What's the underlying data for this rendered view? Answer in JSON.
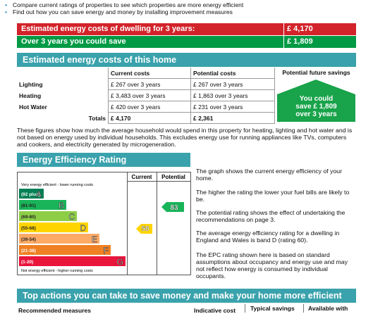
{
  "intro": [
    "Compare current ratings of properties to see which properties are more energy efficient",
    "Find out how you can save energy and money by installing improvement measures"
  ],
  "summary": [
    {
      "label": "Estimated energy costs of dwelling for 3 years:",
      "value": "£ 4,170"
    },
    {
      "label": "Over 3 years you could save",
      "value": "£ 1,809"
    }
  ],
  "costs": {
    "title": "Estimated energy costs of this home",
    "columns": [
      "Current costs",
      "Potential costs",
      "Potential future savings"
    ],
    "rows": [
      [
        "Lighting",
        "£ 267 over 3 years",
        "£ 267 over 3 years"
      ],
      [
        "Heating",
        "£ 3,483 over 3 years",
        "£ 1,863 over 3 years"
      ],
      [
        "Hot Water",
        "£ 420 over 3 years",
        "£ 231 over 3 years"
      ]
    ],
    "totals": [
      "Totals",
      "£ 4,170",
      "£ 2,361"
    ],
    "savings": [
      "You could",
      "save £ 1,809",
      "over 3 years"
    ],
    "note": "These figures show how much the average household would spend in this property for heating, lighting and hot water and is not based on energy used by individual households. This excludes energy use for running appliances like TVs, computers and cookers, and electricity generated by microgeneration."
  },
  "rating": {
    "title": "Energy Efficiency Rating",
    "columns": [
      "Current",
      "Potential"
    ],
    "top_label": "Very energy efficient - lower running costs",
    "bottom_label": "Not energy efficient - higher running costs",
    "bands": [
      {
        "range": "(92 plus)",
        "letter": "A",
        "color": "#008054"
      },
      {
        "range": "(81-91)",
        "letter": "B",
        "color": "#19b459"
      },
      {
        "range": "(69-80)",
        "letter": "C",
        "color": "#8dce46"
      },
      {
        "range": "(55-68)",
        "letter": "D",
        "color": "#ffd500"
      },
      {
        "range": "(39-54)",
        "letter": "E",
        "color": "#fcaa65"
      },
      {
        "range": "(21-38)",
        "letter": "F",
        "color": "#ef8023"
      },
      {
        "range": "(1-20)",
        "letter": "G",
        "color": "#e9153b"
      }
    ],
    "current": 58,
    "potential": 83,
    "notes": [
      "The graph shows the current energy efficiency of your home.",
      "The higher the rating the lower your fuel bills are likely to be.",
      "The potential rating shows the effect of undertaking the recommendations on page 3.",
      "The average energy efficiency rating for a dwelling in England and Wales is band D (rating 60).",
      "The EPC rating shown here is based on standard assumptions about occupancy and energy use and may not reflect how energy is consumed by individual occupants."
    ]
  },
  "actions": {
    "title": "Top actions you can take to save money and make your home more efficient",
    "columns": [
      "Recommended measures",
      "Indicative cost",
      "Typical savings",
      "Available with"
    ]
  }
}
